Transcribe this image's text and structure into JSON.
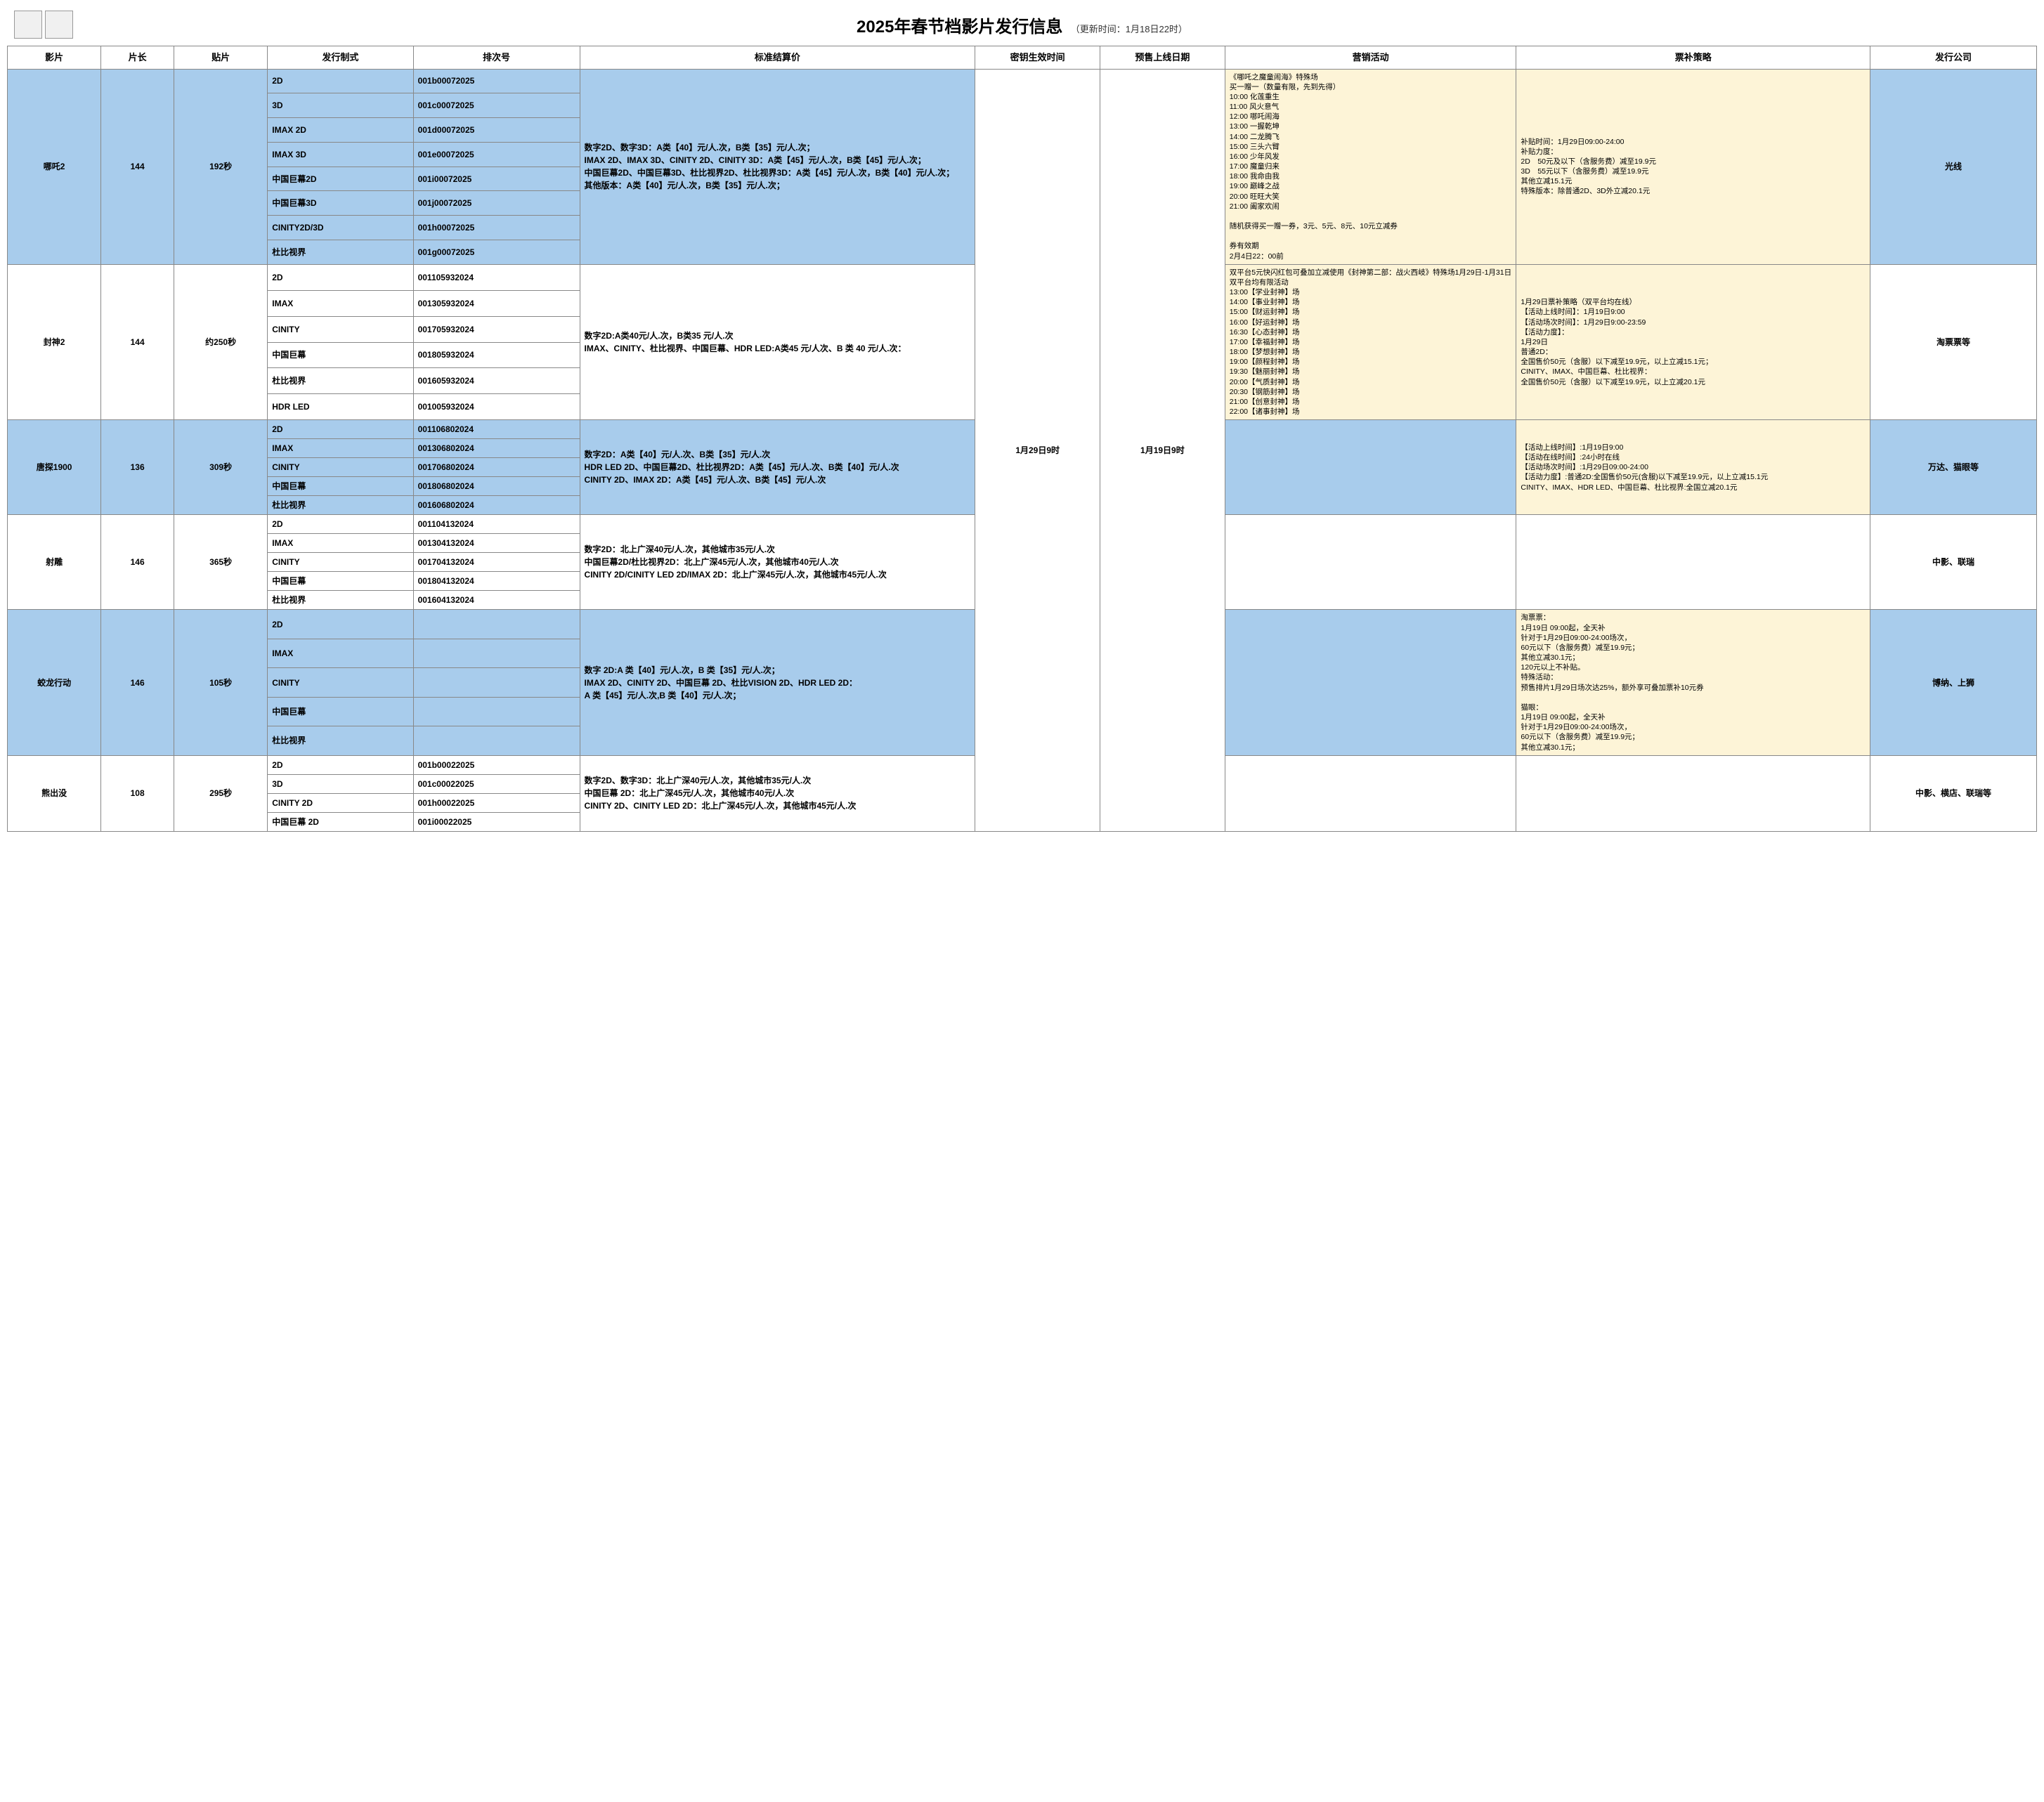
{
  "header": {
    "title": "2025年春节档影片发行信息",
    "update": "（更新时间：1月18日22时）"
  },
  "columns": [
    "影片",
    "片长",
    "贴片",
    "发行制式",
    "排次号",
    "标准结算价",
    "密钥生效时间",
    "预售上线日期",
    "营销活动",
    "票补策略",
    "发行公司"
  ],
  "global": {
    "key_time": "1月29日9时",
    "presale_date": "1月19日9时"
  },
  "films": [
    {
      "name": "哪吒2",
      "dur": "144",
      "trailer": "192秒",
      "dist": "光线",
      "tint": true,
      "formats": [
        {
          "f": "2D",
          "b": "001b00072025"
        },
        {
          "f": "3D",
          "b": "001c00072025"
        },
        {
          "f": "IMAX 2D",
          "b": "001d00072025"
        },
        {
          "f": "IMAX 3D",
          "b": "001e00072025"
        },
        {
          "f": "中国巨幕2D",
          "b": "001i00072025"
        },
        {
          "f": "中国巨幕3D",
          "b": "001j00072025"
        },
        {
          "f": "CINITY2D/3D",
          "b": "001h00072025"
        },
        {
          "f": "杜比视界",
          "b": "001g00072025"
        }
      ],
      "price": "数字2D、数字3D：A类【40】元/人.次，B类【35】元/人.次；\nIMAX 2D、IMAX 3D、CINITY 2D、CINITY 3D：A类【45】元/人.次，B类【45】元/人.次；\n中国巨幕2D、中国巨幕3D、杜比视界2D、杜比视界3D：A类【45】元/人.次，B类【40】元/人.次；\n其他版本：A类【40】元/人.次，B类【35】元/人.次；",
      "promo": "《哪吒之魔童闹海》特殊场\n买一赠一（数量有限，先到先得）\n10:00 化莲重生\n11:00 风火意气\n12:00 哪吒闹海\n13:00 一握乾坤\n14:00 二龙腾飞\n15:00 三头六臂\n16:00 少年风发\n17:00 魔童归来\n18:00 我命由我\n19:00 巅峰之战\n20:00 旺旺大笑\n21:00 阖家欢闹\n\n随机获得买一赠一券，3元、5元、8元、10元立减券\n\n券有效期\n2月4日22：00前",
      "subsidy": "补贴时间：1月29日09:00-24:00\n补贴力度：\n2D　50元及以下（含服务费）减至19.9元\n3D　55元以下（含服务费）减至19.9元\n其他立减15.1元\n特殊版本：除普通2D、3D外立减20.1元"
    },
    {
      "name": "封神2",
      "dur": "144",
      "trailer": "约250秒",
      "dist": "淘票票等",
      "tint": false,
      "formats": [
        {
          "f": "2D",
          "b": "001105932024"
        },
        {
          "f": "IMAX",
          "b": "001305932024"
        },
        {
          "f": "CINITY",
          "b": "001705932024"
        },
        {
          "f": "中国巨幕",
          "b": "001805932024"
        },
        {
          "f": "杜比视界",
          "b": "001605932024"
        },
        {
          "f": "HDR LED",
          "b": "001005932024"
        }
      ],
      "price": "数字2D:A类40元/人.次，B类35 元/人.次\nIMAX、CINITY、杜比视界、中国巨幕、HDR LED:A类45 元/人次、B 类 40 元/人.次：",
      "promo": "双平台5元快闪红包可叠加立减使用《封神第二部：战火西岐》特殊场1月29日-1月31日\n双平台均有限活动\n13:00【学业封神】场\n14:00【事业封神】场\n15:00【财运封神】场\n16:00【好运封神】场\n16:30【心态封神】场\n17:00【幸福封神】场\n18:00【梦想封神】场\n19:00【颜程封神】场\n19:30【魅丽封神】场\n20:00【气质封神】场\n20:30【钢筋封神】场\n21:00【创意封神】场\n22:00【诸事封神】场",
      "subsidy": "1月29日票补策略（双平台均在线）\n【活动上线时间】：1月19日9:00\n【活动场次时间】：1月29日9:00-23:59\n【活动力度】：\n1月29日\n普通2D：\n全国售价50元（含服）以下减至19.9元，以上立减15.1元；\nCINITY、IMAX、中国巨幕、杜比视界：\n全国售价50元（含服）以下减至19.9元，以上立减20.1元"
    },
    {
      "name": "唐探1900",
      "dur": "136",
      "trailer": "309秒",
      "dist": "万达、猫眼等",
      "tint": true,
      "formats": [
        {
          "f": "2D",
          "b": "001106802024"
        },
        {
          "f": "IMAX",
          "b": "001306802024"
        },
        {
          "f": "CINITY",
          "b": "001706802024"
        },
        {
          "f": "中国巨幕",
          "b": "001806802024"
        },
        {
          "f": "杜比视界",
          "b": "001606802024"
        }
      ],
      "price": "数字2D：A类【40】元/人.次、B类【35】元/人.次\nHDR LED 2D、中国巨幕2D、杜比视界2D：A类【45】元/人.次、B类【40】元/人.次\nCINITY 2D、IMAX 2D：A类【45】元/人.次、B类【45】元/人.次",
      "promo": "",
      "subsidy": "【活动上线时间】:1月19日9:00\n【活动在线时间】:24小时在线\n【活动场次时间】:1月29日09:00-24:00\n【活动力度】:普通2D:全国售价50元(含服)以下减至19.9元，以上立减15.1元\nCINITY、IMAX、HDR LED、中国巨幕、杜比视界:全国立减20.1元"
    },
    {
      "name": "射雕",
      "dur": "146",
      "trailer": "365秒",
      "dist": "中影、联瑞",
      "tint": false,
      "formats": [
        {
          "f": "2D",
          "b": "001104132024"
        },
        {
          "f": "IMAX",
          "b": "001304132024"
        },
        {
          "f": "CINITY",
          "b": "001704132024"
        },
        {
          "f": "中国巨幕",
          "b": "001804132024"
        },
        {
          "f": "杜比视界",
          "b": "001604132024"
        }
      ],
      "price": "数字2D：北上广深40元/人.次，其他城市35元/人.次\n中国巨幕2D/杜比视界2D：北上广深45元/人.次，其他城市40元/人.次\nCINITY 2D/CINITY LED 2D/IMAX 2D：北上广深45元/人.次，其他城市45元/人.次",
      "promo": "",
      "subsidy": ""
    },
    {
      "name": "蛟龙行动",
      "dur": "146",
      "trailer": "105秒",
      "dist": "博纳、上狮",
      "tint": true,
      "formats": [
        {
          "f": "2D",
          "b": ""
        },
        {
          "f": "IMAX",
          "b": ""
        },
        {
          "f": "CINITY",
          "b": ""
        },
        {
          "f": "中国巨幕",
          "b": ""
        },
        {
          "f": "杜比视界",
          "b": ""
        }
      ],
      "price": "数字 2D:A 类【40】元/人.次，B 类【35】元/人.次；\nIMAX 2D、CINITY 2D、中国巨幕 2D、杜比VISION 2D、HDR LED 2D：\nA 类【45】元/人.次,B 类【40】元/人.次；",
      "promo": "",
      "subsidy": "淘票票：\n1月19日 09:00起，全天补\n针对于1月29日09:00-24:00场次，\n60元以下（含服务费）减至19.9元；\n其他立减30.1元；\n120元以上不补贴。\n特殊活动：\n预售排片1月29日场次达25%，额外享可叠加票补10元券\n\n猫眼：\n1月19日 09:00起，全天补\n针对于1月29日09:00-24:00场次，\n60元以下（含服务费）减至19.9元；\n其他立减30.1元；"
    },
    {
      "name": "熊出没",
      "dur": "108",
      "trailer": "295秒",
      "dist": "中影、横店、联瑞等",
      "tint": false,
      "formats": [
        {
          "f": "2D",
          "b": "001b00022025"
        },
        {
          "f": "3D",
          "b": "001c00022025"
        },
        {
          "f": "CINITY 2D",
          "b": "001h00022025"
        },
        {
          "f": "中国巨幕 2D",
          "b": "001i00022025"
        }
      ],
      "price": "数字2D、数字3D：北上广深40元/人.次，其他城市35元/人.次\n中国巨幕 2D：北上广深45元/人.次，其他城市40元/人.次\nCINITY 2D、CINITY LED 2D：北上广深45元/人.次，其他城市45元/人.次",
      "promo": "",
      "subsidy": ""
    }
  ]
}
